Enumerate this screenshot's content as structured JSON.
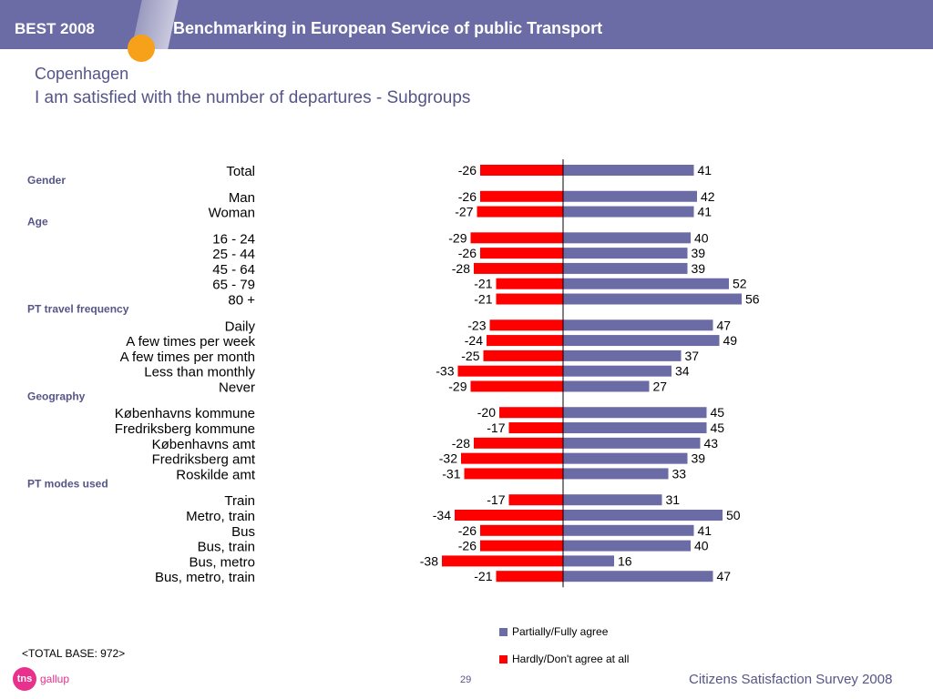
{
  "header": {
    "brand": "BEST 2008",
    "title": "Benchmarking in European Service of public Transport"
  },
  "page": {
    "city": "Copenhagen",
    "subtitle": "I am satisfied with the number of departures - Subgroups",
    "base_note": "<TOTAL BASE: 972>",
    "logo_tns": "tns",
    "logo_gallup": "gallup",
    "page_number": "29",
    "survey": "Citizens Satisfaction Survey 2008"
  },
  "colors": {
    "agree": "#6b6ba5",
    "disagree": "#ff0000",
    "header_bg": "#6b6ba5",
    "accent": "#f7a11a",
    "title": "#555588"
  },
  "chart_data": {
    "type": "bar",
    "orientation": "horizontal-diverging",
    "title": "I am satisfied with the number of departures - Subgroups",
    "legend": [
      "Partially/Fully agree",
      "Hardly/Don't agree at all"
    ],
    "legend_placement": "bottom",
    "series": [
      {
        "name": "Partially/Fully agree",
        "color": "#6b6ba5"
      },
      {
        "name": "Hardly/Don't agree at all",
        "color": "#ff0000"
      }
    ],
    "rows": [
      {
        "kind": "item",
        "label": "Total",
        "agree": 41,
        "disagree": -26
      },
      {
        "kind": "group",
        "label": "Gender"
      },
      {
        "kind": "item",
        "label": "Man",
        "agree": 42,
        "disagree": -26
      },
      {
        "kind": "item",
        "label": "Woman",
        "agree": 41,
        "disagree": -27
      },
      {
        "kind": "group",
        "label": "Age"
      },
      {
        "kind": "item",
        "label": "16 - 24",
        "agree": 40,
        "disagree": -29
      },
      {
        "kind": "item",
        "label": "25 - 44",
        "agree": 39,
        "disagree": -26
      },
      {
        "kind": "item",
        "label": "45 - 64",
        "agree": 39,
        "disagree": -28
      },
      {
        "kind": "item",
        "label": "65 - 79",
        "agree": 52,
        "disagree": -21
      },
      {
        "kind": "item",
        "label": "80 +",
        "agree": 56,
        "disagree": -21
      },
      {
        "kind": "group",
        "label": "PT travel frequency"
      },
      {
        "kind": "item",
        "label": "Daily",
        "agree": 47,
        "disagree": -23
      },
      {
        "kind": "item",
        "label": "A few times per week",
        "agree": 49,
        "disagree": -24
      },
      {
        "kind": "item",
        "label": "A few times per month",
        "agree": 37,
        "disagree": -25
      },
      {
        "kind": "item",
        "label": "Less than monthly",
        "agree": 34,
        "disagree": -33
      },
      {
        "kind": "item",
        "label": "Never",
        "agree": 27,
        "disagree": -29
      },
      {
        "kind": "group",
        "label": "Geography"
      },
      {
        "kind": "item",
        "label": "Københavns kommune",
        "agree": 45,
        "disagree": -20
      },
      {
        "kind": "item",
        "label": "Fredriksberg kommune",
        "agree": 45,
        "disagree": -17
      },
      {
        "kind": "item",
        "label": "Københavns amt",
        "agree": 43,
        "disagree": -28
      },
      {
        "kind": "item",
        "label": "Fredriksberg amt",
        "agree": 39,
        "disagree": -32
      },
      {
        "kind": "item",
        "label": "Roskilde amt",
        "agree": 33,
        "disagree": -31
      },
      {
        "kind": "group",
        "label": "PT modes used"
      },
      {
        "kind": "item",
        "label": "Train",
        "agree": 31,
        "disagree": -17
      },
      {
        "kind": "item",
        "label": "Metro, train",
        "agree": 50,
        "disagree": -34
      },
      {
        "kind": "item",
        "label": "Bus",
        "agree": 41,
        "disagree": -26
      },
      {
        "kind": "item",
        "label": "Bus, train",
        "agree": 40,
        "disagree": -26
      },
      {
        "kind": "item",
        "label": "Bus, metro",
        "agree": 16,
        "disagree": -38
      },
      {
        "kind": "item",
        "label": "Bus, metro, train",
        "agree": 47,
        "disagree": -21
      }
    ]
  }
}
